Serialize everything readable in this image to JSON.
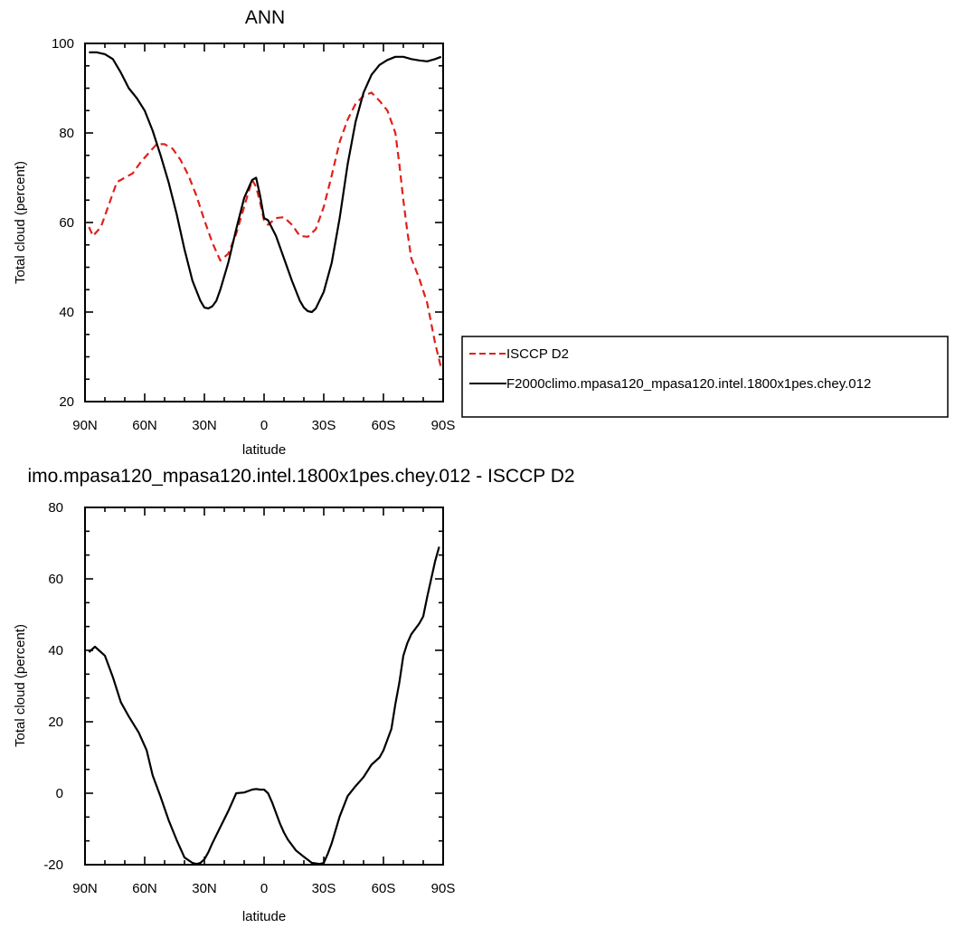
{
  "chart_data": [
    {
      "type": "line",
      "title": "ANN",
      "xlabel": "latitude",
      "ylabel": "Total cloud (percent)",
      "xlim": [
        90,
        -90
      ],
      "ylim": [
        20,
        100
      ],
      "xticks": [
        90,
        60,
        30,
        0,
        -30,
        -60,
        -90
      ],
      "xtick_labels": [
        "90N",
        "60N",
        "30N",
        "0",
        "30S",
        "60S",
        "90S"
      ],
      "yticks": [
        20,
        40,
        60,
        80,
        100
      ],
      "ytick_labels": [
        "20",
        "40",
        "60",
        "80",
        "100"
      ],
      "grid": false,
      "legend": "outside-right",
      "series": [
        {
          "name": "ISCCP D2",
          "color": "#e0201b",
          "dash": "dashed",
          "x": [
            88,
            86,
            82,
            78,
            74,
            70,
            66,
            62,
            58,
            54,
            50,
            46,
            42,
            38,
            34,
            30,
            26,
            22,
            18,
            14,
            10,
            6,
            4,
            2,
            0,
            -2,
            -6,
            -10,
            -14,
            -18,
            -22,
            -26,
            -30,
            -34,
            -38,
            -42,
            -46,
            -50,
            -54,
            -58,
            -62,
            -66,
            -68,
            -70,
            -72,
            -74,
            -78,
            -82,
            -86,
            -89
          ],
          "values": [
            59,
            57,
            59,
            64,
            69,
            70,
            71,
            73.5,
            75.5,
            77.5,
            77.5,
            76.5,
            74,
            70.5,
            66,
            60.5,
            55.5,
            51.5,
            53,
            57.5,
            63.5,
            69.5,
            68,
            64.5,
            60.5,
            59.5,
            61,
            61.2,
            59.5,
            57,
            56.8,
            58.5,
            63.5,
            70.5,
            78,
            83,
            86.5,
            88.3,
            89,
            87.2,
            85,
            80,
            73,
            65,
            58,
            52,
            47.5,
            42,
            33,
            27.5
          ]
        },
        {
          "name": "F2000climo.mpasa120_mpasa120.intel.1800x1pes.chey.012",
          "color": "#000000",
          "dash": "solid",
          "x": [
            88,
            84,
            80,
            76,
            72,
            68,
            64,
            60,
            56,
            52,
            48,
            44,
            40,
            36,
            32,
            30,
            28,
            26,
            24,
            22,
            18,
            14,
            10,
            6,
            4,
            2,
            0,
            -2,
            -6,
            -10,
            -14,
            -18,
            -20,
            -22,
            -24,
            -26,
            -30,
            -34,
            -38,
            -42,
            -46,
            -50,
            -54,
            -58,
            -62,
            -66,
            -70,
            -74,
            -78,
            -82,
            -86,
            -89
          ],
          "values": [
            98,
            98,
            97.6,
            96.5,
            93.5,
            90,
            87.8,
            85,
            80.5,
            75,
            69,
            62,
            54,
            47,
            42.5,
            41,
            40.8,
            41.3,
            42.5,
            45,
            51,
            58.5,
            65.5,
            69.5,
            70,
            66,
            61,
            60.5,
            57,
            52,
            47,
            42.5,
            41,
            40.2,
            40,
            40.8,
            44.5,
            51,
            61,
            73,
            82.5,
            89,
            93,
            95.2,
            96.3,
            97,
            97,
            96.5,
            96.2,
            96,
            96.5,
            97
          ]
        }
      ]
    },
    {
      "type": "line",
      "title": "imo.mpasa120_mpasa120.intel.1800x1pes.chey.012 - ISCCP D2",
      "xlabel": "latitude",
      "ylabel": "Total cloud (percent)",
      "xlim": [
        90,
        -90
      ],
      "ylim": [
        -20,
        80
      ],
      "xticks": [
        90,
        60,
        30,
        0,
        -30,
        -60,
        -90
      ],
      "xtick_labels": [
        "90N",
        "60N",
        "30N",
        "0",
        "30S",
        "60S",
        "90S"
      ],
      "yticks": [
        -20,
        0,
        20,
        40,
        60,
        80
      ],
      "ytick_labels": [
        "-20",
        "0",
        "20",
        "40",
        "60",
        "80"
      ],
      "grid": false,
      "series": [
        {
          "color": "#000000",
          "dash": "solid",
          "x": [
            88,
            85,
            80,
            76,
            72,
            68,
            63,
            59,
            56,
            52,
            48,
            44,
            40,
            36,
            34,
            32,
            30,
            28,
            26,
            22,
            18,
            14,
            10,
            6,
            4,
            2,
            0,
            -2,
            -4,
            -6,
            -8,
            -10,
            -12,
            -16,
            -20,
            -24,
            -28,
            -30,
            -32,
            -34,
            -38,
            -42,
            -46,
            -50,
            -54,
            -58,
            -60,
            -62,
            -64,
            -66,
            -68,
            -70,
            -72,
            -74,
            -78,
            -80,
            -82,
            -86,
            -88
          ],
          "values": [
            39.5,
            41,
            38.5,
            32.5,
            25.5,
            21.5,
            17,
            12,
            5,
            -1,
            -7.5,
            -13,
            -18,
            -19.5,
            -19.8,
            -19.5,
            -18.5,
            -16.5,
            -14,
            -9.5,
            -5,
            0,
            0.2,
            1,
            1.2,
            1,
            1,
            0,
            -2.5,
            -5.5,
            -8.5,
            -11,
            -13,
            -16,
            -17.8,
            -19.5,
            -19.8,
            -19.5,
            -17,
            -14,
            -6.5,
            -0.8,
            2,
            4.5,
            8,
            10,
            12,
            15,
            18,
            25,
            31,
            38.5,
            42,
            44.5,
            47.5,
            49.5,
            55,
            65,
            69
          ]
        }
      ]
    }
  ]
}
